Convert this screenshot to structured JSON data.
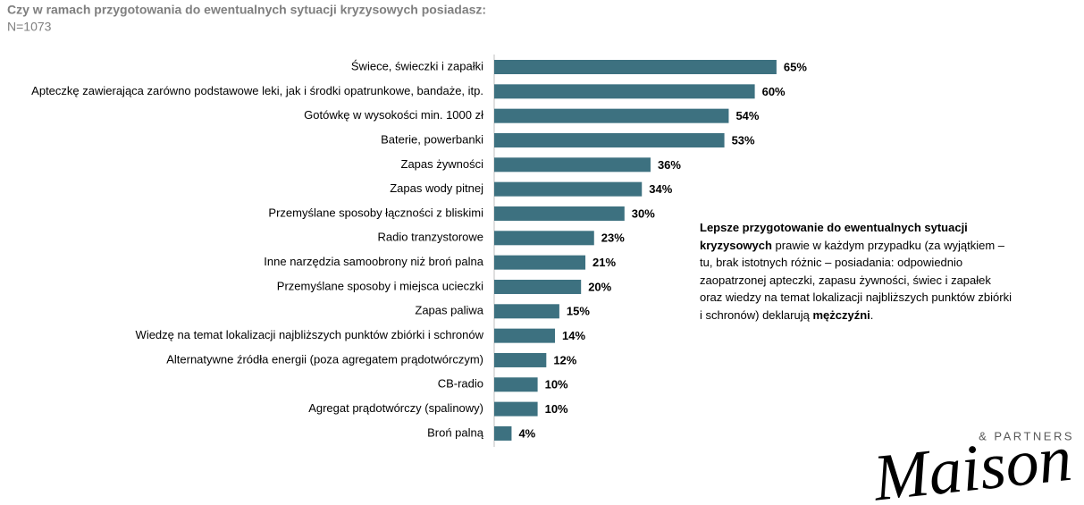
{
  "chart_data": {
    "type": "barh",
    "title": "Czy w ramach przygotowania do ewentualnych sytuacji kryzysowych posiadasz:",
    "subtitle": "N=1073",
    "categories": [
      "Świece, świeczki i zapałki",
      "Apteczkę zawierająca zarówno podstawowe leki, jak i środki opatrunkowe, bandaże, itp.",
      "Gotówkę w wysokości min. 1000 zł",
      "Baterie, powerbanki",
      "Zapas żywności",
      "Zapas wody pitnej",
      "Przemyślane sposoby łączności z bliskimi",
      "Radio tranzystorowe",
      "Inne narzędzia samoobrony niż broń palna",
      "Przemyślane sposoby i miejsca ucieczki",
      "Zapas paliwa",
      "Wiedzę na temat lokalizacji najbliższych punktów zbiórki i schronów",
      "Alternatywne źródła energii (poza agregatem prądotwórczym)",
      "CB-radio",
      "Agregat prądotwórczy (spalinowy)",
      "Broń palną"
    ],
    "values": [
      65,
      60,
      54,
      53,
      36,
      34,
      30,
      23,
      21,
      20,
      15,
      14,
      12,
      10,
      10,
      4
    ],
    "value_labels": [
      "65%",
      "60%",
      "54%",
      "53%",
      "36%",
      "34%",
      "30%",
      "23%",
      "21%",
      "20%",
      "15%",
      "14%",
      "12%",
      "10%",
      "10%",
      "4%"
    ],
    "color": "#3d7180",
    "note": [
      {
        "text": "Lepsze przygotowanie do ewentualnych sytuacji kryzysowych",
        "bold": true
      },
      {
        "text": " prawie w każdym przypadku (za wyjątkiem – tu, brak istotnych różnic – posiadania: odpowiednio zaopatrzonej apteczki, zapasu żywności, świec i zapałek oraz wiedzy na temat lokalizacji najbliższych punktów zbiórki i schronów) deklarują ",
        "bold": false
      },
      {
        "text": "mężczyźni",
        "bold": true
      },
      {
        "text": ".",
        "bold": false
      }
    ],
    "logo": {
      "name": "Maison",
      "suffix": "& PARTNERS"
    }
  }
}
